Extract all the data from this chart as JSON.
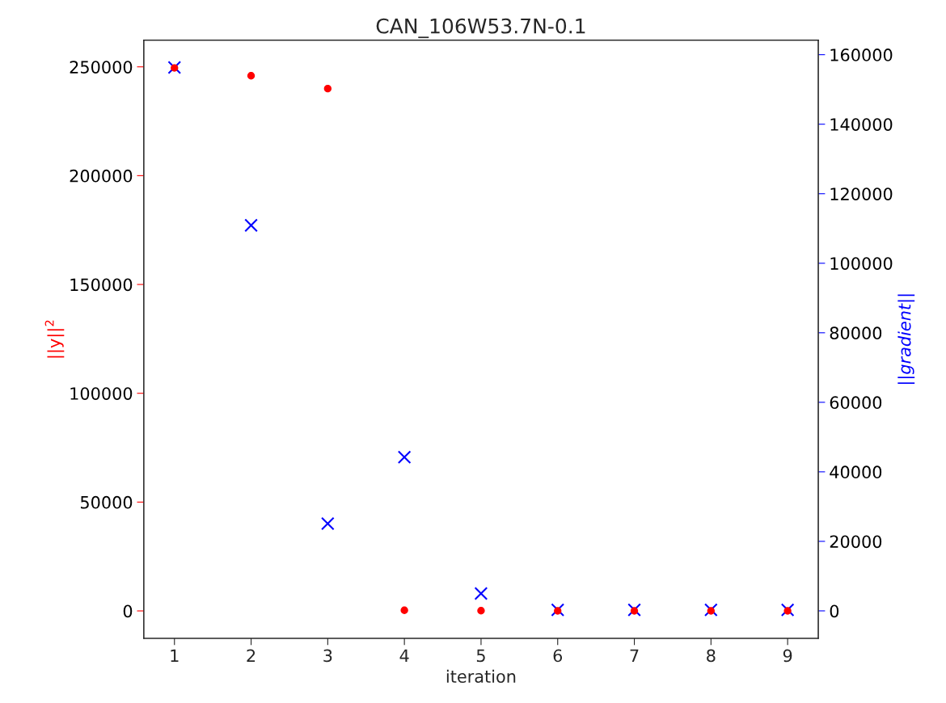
{
  "chart_data": {
    "type": "scatter",
    "title": "CAN_106W53.7N-0.1",
    "xlabel": "iteration",
    "ylabel": "||y||$^{2}$",
    "y2label": "||gradient||",
    "x": [
      1,
      2,
      3,
      4,
      5,
      6,
      7,
      8,
      9
    ],
    "series": [
      {
        "color": "#ff0000",
        "marker": "circle",
        "values": [
          249500,
          245900,
          240000,
          300,
          100,
          0,
          0,
          0,
          0
        ]
      },
      {
        "color": "#0000ff",
        "marker": "cross",
        "axis": "y2",
        "values": [
          156300,
          110900,
          25100,
          44200,
          5000,
          300,
          300,
          300,
          300
        ]
      }
    ],
    "xlim": [
      0.6,
      9.4
    ],
    "xticks": [
      1,
      2,
      3,
      4,
      5,
      6,
      7,
      8,
      9
    ],
    "ylim": [
      -12600,
      262300
    ],
    "yticks": [
      0,
      50000,
      100000,
      150000,
      200000,
      250000
    ],
    "y2lim": [
      -7900,
      164200
    ],
    "y2ticks": [
      0,
      20000,
      40000,
      60000,
      80000,
      100000,
      120000,
      140000,
      160000
    ],
    "grid": false,
    "legend": false
  }
}
